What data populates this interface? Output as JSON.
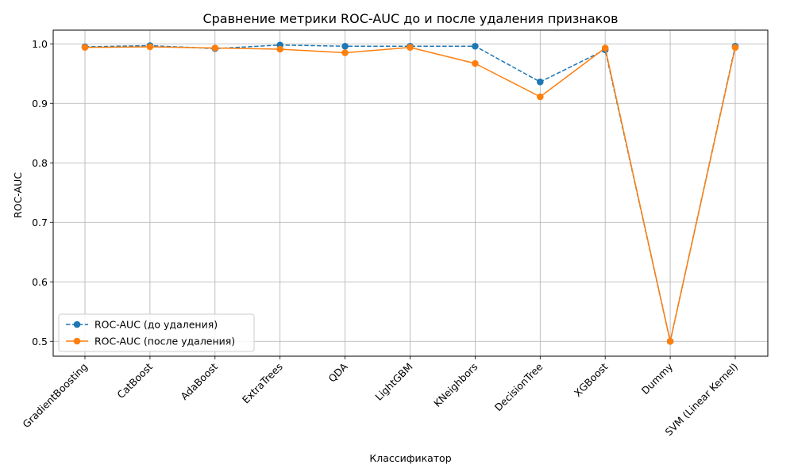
{
  "chart_data": {
    "type": "line",
    "title": "Сравнение метрики ROC-AUC до и после удаления признаков",
    "xlabel": "Классификатор",
    "ylabel": "ROC-AUC",
    "categories": [
      "GradientBoosting",
      "CatBoost",
      "AdaBoost",
      "ExtraTrees",
      "QDA",
      "LightGBM",
      "KNeighbors",
      "DecisionTree",
      "XGBoost",
      "Dummy",
      "SVM (Linear Kernel)"
    ],
    "ylim": [
      0.475,
      1.023
    ],
    "yticks": [
      0.5,
      0.6,
      0.7,
      0.8,
      0.9,
      1.0
    ],
    "ytick_labels": [
      "0.5",
      "0.6",
      "0.7",
      "0.8",
      "0.9",
      "1.0"
    ],
    "grid": true,
    "legend_position": "lower-left",
    "series": [
      {
        "name": "ROC-AUC (до удаления)",
        "color": "#1f77b4",
        "linestyle": "dashed",
        "marker": "circle",
        "values": [
          0.995,
          0.997,
          0.992,
          0.998,
          0.996,
          0.996,
          0.996,
          0.936,
          0.99,
          0.5,
          0.996
        ]
      },
      {
        "name": "ROC-AUC (после удаления)",
        "color": "#ff7f0e",
        "linestyle": "solid",
        "marker": "circle",
        "values": [
          0.994,
          0.995,
          0.993,
          0.991,
          0.985,
          0.994,
          0.967,
          0.911,
          0.993,
          0.5,
          0.994
        ]
      }
    ]
  }
}
